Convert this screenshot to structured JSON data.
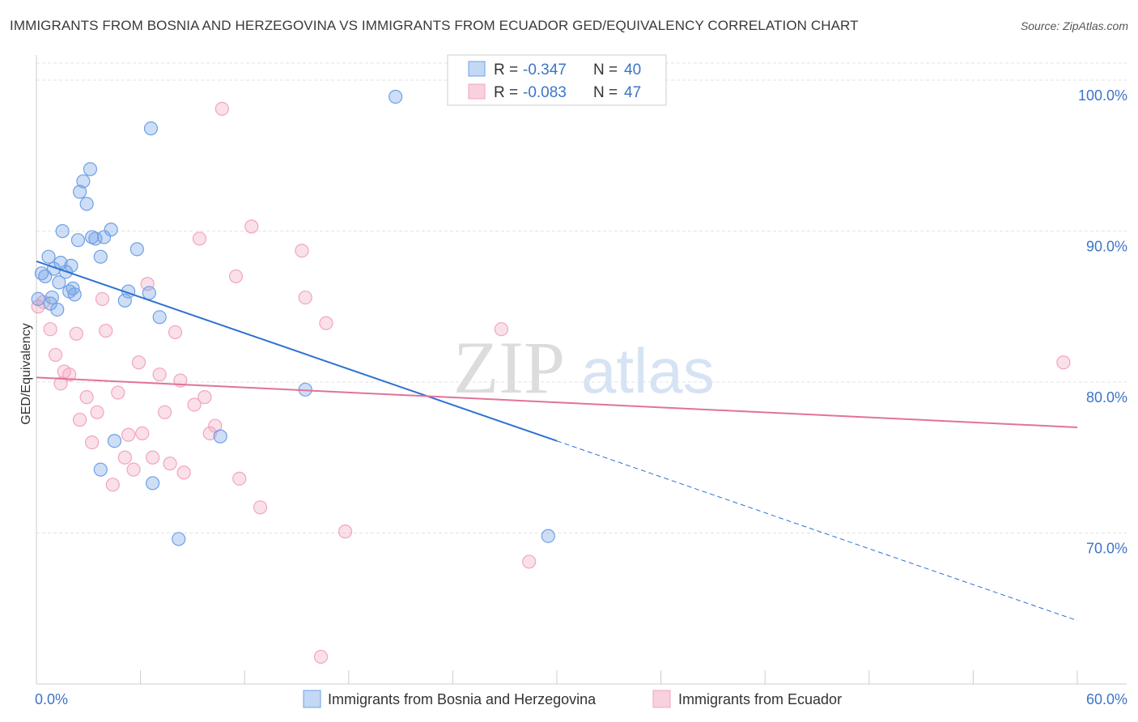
{
  "title": "IMMIGRANTS FROM BOSNIA AND HERZEGOVINA VS IMMIGRANTS FROM ECUADOR GED/EQUIVALENCY CORRELATION CHART",
  "source": "Source: ZipAtlas.com",
  "watermark": {
    "zip": "ZIP",
    "atlas": "atlas"
  },
  "legend": {
    "r_label": "R =",
    "n_label": "N =",
    "rows": [
      {
        "r": "-0.347",
        "n": "40"
      },
      {
        "r": "-0.083",
        "n": "47"
      }
    ]
  },
  "chart_data": {
    "type": "scatter",
    "title": "IMMIGRANTS FROM BOSNIA AND HERZEGOVINA VS IMMIGRANTS FROM ECUADOR GED/EQUIVALENCY CORRELATION CHART",
    "xlabel": "",
    "ylabel": "GED/Equivalency",
    "xlim": [
      0,
      60
    ],
    "ylim": [
      60,
      101.5
    ],
    "x_tick_labels": [
      "0.0%",
      "60.0%"
    ],
    "y_ticks": [
      70,
      80,
      90,
      100
    ],
    "y_tick_labels": [
      "70.0%",
      "80.0%",
      "90.0%",
      "100.0%"
    ],
    "grid": true,
    "legend_position": "top-center",
    "series": [
      {
        "name": "Immigrants from Bosnia and Herzegovina",
        "color": "#6fa0e6",
        "line_color": "#2f72d1",
        "r": -0.347,
        "n": 40,
        "trend": {
          "x": [
            0,
            30,
            60
          ],
          "y": [
            88.0,
            76.1,
            64.2
          ],
          "solid_until_x": 30
        },
        "points": [
          [
            0.1,
            85.5
          ],
          [
            0.3,
            87.2
          ],
          [
            0.5,
            87.0
          ],
          [
            0.7,
            88.3
          ],
          [
            0.9,
            85.6
          ],
          [
            1.0,
            87.5
          ],
          [
            1.2,
            84.8
          ],
          [
            1.4,
            87.9
          ],
          [
            1.5,
            90.0
          ],
          [
            1.7,
            87.3
          ],
          [
            1.9,
            86.0
          ],
          [
            2.0,
            87.7
          ],
          [
            2.2,
            85.8
          ],
          [
            2.4,
            89.4
          ],
          [
            2.5,
            92.6
          ],
          [
            2.7,
            93.3
          ],
          [
            2.9,
            91.8
          ],
          [
            3.1,
            94.1
          ],
          [
            3.2,
            89.6
          ],
          [
            3.4,
            89.5
          ],
          [
            3.7,
            88.3
          ],
          [
            3.9,
            89.6
          ],
          [
            4.3,
            90.1
          ],
          [
            5.1,
            85.4
          ],
          [
            5.3,
            86.0
          ],
          [
            5.8,
            88.8
          ],
          [
            6.5,
            85.9
          ],
          [
            6.6,
            96.8
          ],
          [
            7.1,
            84.3
          ],
          [
            3.7,
            74.2
          ],
          [
            4.5,
            76.1
          ],
          [
            6.7,
            73.3
          ],
          [
            8.2,
            69.6
          ],
          [
            10.6,
            76.4
          ],
          [
            15.5,
            79.5
          ],
          [
            20.7,
            98.9
          ],
          [
            29.5,
            69.8
          ],
          [
            0.8,
            85.2
          ],
          [
            2.1,
            86.2
          ],
          [
            1.3,
            86.6
          ]
        ]
      },
      {
        "name": "Immigrants from Ecuador",
        "color": "#f2a5bd",
        "line_color": "#e2729a",
        "r": -0.083,
        "n": 47,
        "trend": {
          "x": [
            0,
            60
          ],
          "y": [
            80.3,
            77.0
          ]
        },
        "points": [
          [
            0.1,
            85.0
          ],
          [
            0.4,
            85.3
          ],
          [
            0.8,
            83.5
          ],
          [
            1.1,
            81.8
          ],
          [
            1.4,
            79.9
          ],
          [
            1.6,
            80.7
          ],
          [
            1.9,
            80.5
          ],
          [
            2.3,
            83.2
          ],
          [
            2.5,
            77.5
          ],
          [
            2.9,
            79.0
          ],
          [
            3.2,
            76.0
          ],
          [
            3.5,
            78.0
          ],
          [
            3.8,
            85.5
          ],
          [
            4.0,
            83.4
          ],
          [
            4.4,
            73.2
          ],
          [
            4.7,
            79.3
          ],
          [
            5.1,
            75.0
          ],
          [
            5.3,
            76.5
          ],
          [
            5.6,
            74.2
          ],
          [
            5.9,
            81.3
          ],
          [
            6.1,
            76.6
          ],
          [
            6.4,
            86.5
          ],
          [
            6.7,
            75.0
          ],
          [
            7.1,
            80.5
          ],
          [
            7.4,
            78.0
          ],
          [
            7.7,
            74.6
          ],
          [
            8.0,
            83.3
          ],
          [
            8.3,
            80.1
          ],
          [
            8.5,
            74.0
          ],
          [
            9.1,
            78.5
          ],
          [
            9.4,
            89.5
          ],
          [
            9.7,
            79.0
          ],
          [
            10.0,
            76.6
          ],
          [
            10.3,
            77.1
          ],
          [
            10.7,
            98.1
          ],
          [
            11.5,
            87.0
          ],
          [
            11.7,
            73.6
          ],
          [
            12.4,
            90.3
          ],
          [
            12.9,
            71.7
          ],
          [
            15.3,
            88.7
          ],
          [
            15.5,
            85.6
          ],
          [
            16.4,
            61.8
          ],
          [
            16.7,
            83.9
          ],
          [
            17.8,
            70.1
          ],
          [
            26.8,
            83.5
          ],
          [
            28.4,
            68.1
          ],
          [
            59.2,
            81.3
          ]
        ]
      }
    ]
  },
  "bottom_legend": [
    "Immigrants from Bosnia and Herzegovina",
    "Immigrants from Ecuador"
  ]
}
